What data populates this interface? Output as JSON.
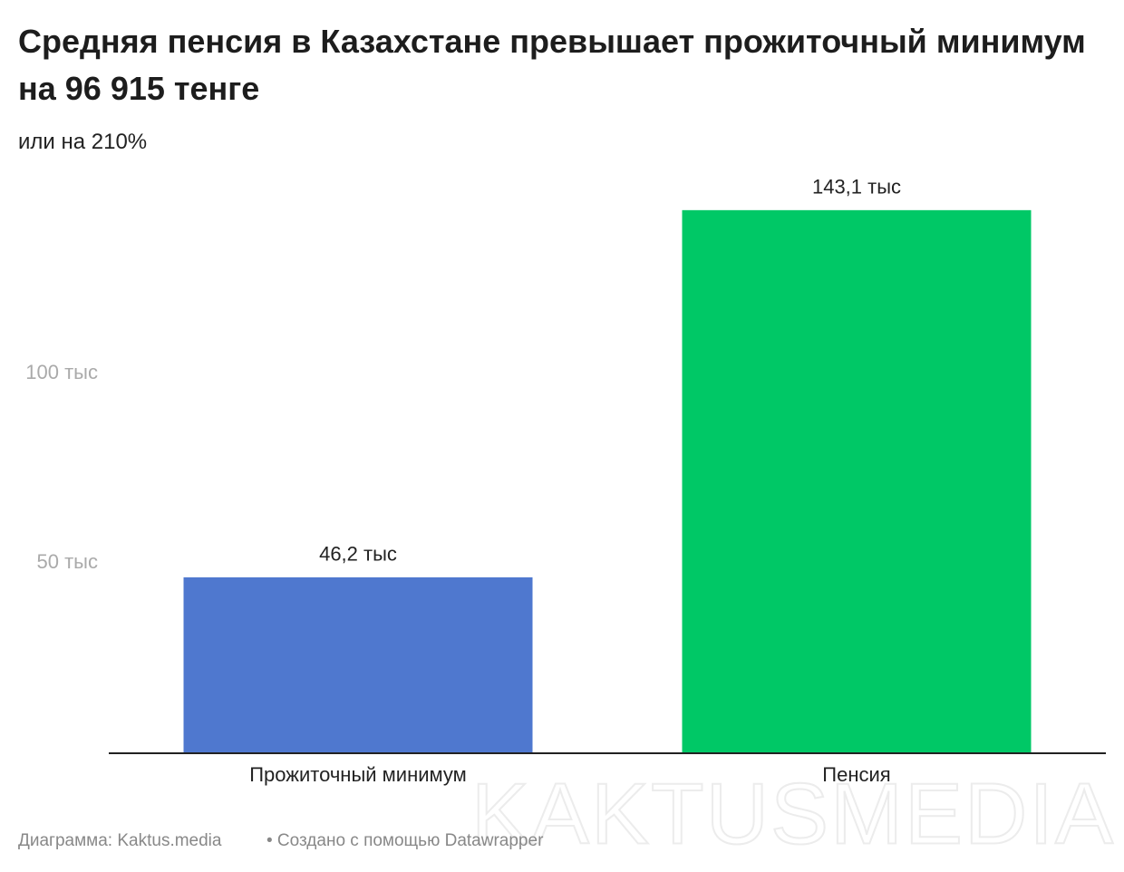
{
  "chart_data": {
    "type": "bar",
    "title": "Средняя пенсия в Казахстане превышает прожиточный минимум на 96 915 тенге",
    "subtitle": "или на 210%",
    "categories": [
      "Прожиточный минимум",
      "Пенсия"
    ],
    "values": [
      46200,
      143100
    ],
    "value_labels": [
      "46,2 тыс",
      "143,1 тыс"
    ],
    "colors": [
      "#4f78cf",
      "#00c866"
    ],
    "ylim": [
      0,
      150000
    ],
    "yticks": [
      {
        "value": 50000,
        "label": "50 тыс"
      },
      {
        "value": 100000,
        "label": "100 тыс"
      }
    ],
    "grid": false,
    "source": "Диаграмма: Kaktus.media",
    "credit": "• Создано с помощью Datawrapper",
    "watermark": "KAKTUSMEDIA"
  }
}
